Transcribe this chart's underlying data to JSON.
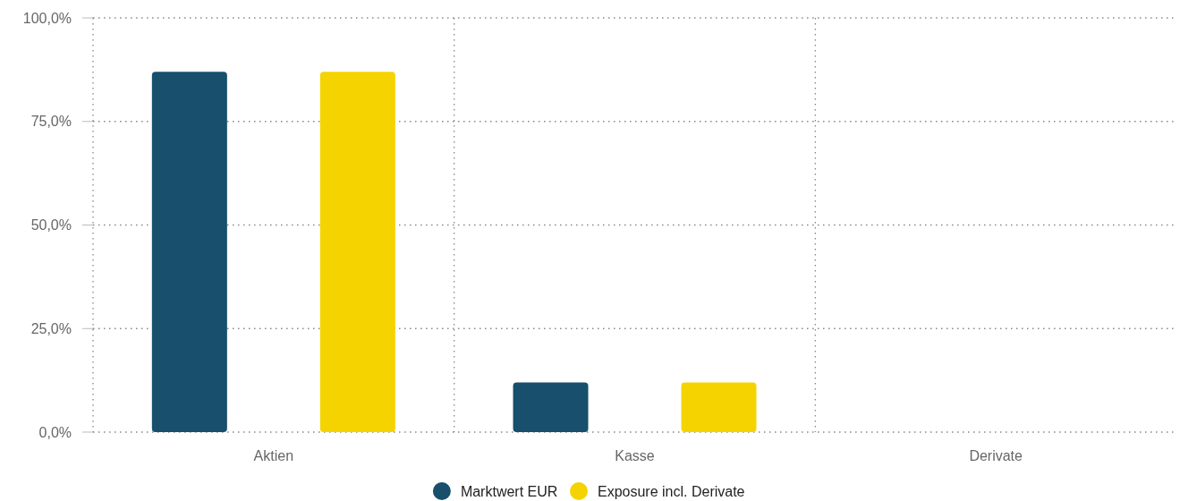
{
  "chart_data": {
    "type": "bar",
    "categories": [
      "Aktien",
      "Kasse",
      "Derivate"
    ],
    "series": [
      {
        "name": "Marktwert EUR",
        "color": "#174f6c",
        "values": [
          87,
          12,
          0
        ]
      },
      {
        "name": "Exposure incl. Derivate",
        "color": "#f5d300",
        "values": [
          87,
          12,
          0
        ]
      }
    ],
    "ylim": [
      0,
      100
    ],
    "yticks": [
      {
        "value": 0,
        "label": "0,0%"
      },
      {
        "value": 25,
        "label": "25,0%"
      },
      {
        "value": 50,
        "label": "50,0%"
      },
      {
        "value": 75,
        "label": "75,0%"
      },
      {
        "value": 100,
        "label": "100,0%"
      }
    ],
    "grid": true,
    "legend": "bottom"
  }
}
